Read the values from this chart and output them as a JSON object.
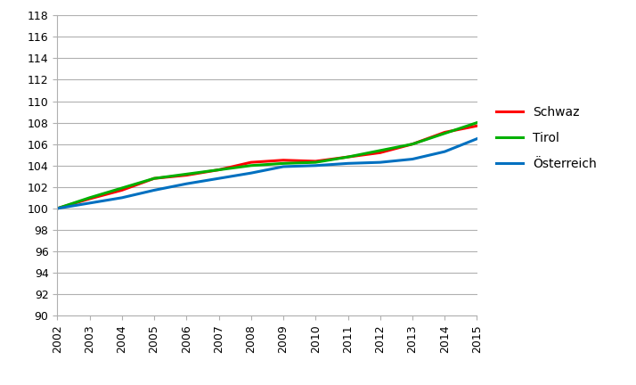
{
  "years": [
    2002,
    2003,
    2004,
    2005,
    2006,
    2007,
    2008,
    2009,
    2010,
    2011,
    2012,
    2013,
    2014,
    2015
  ],
  "schwaz": [
    100.0,
    100.9,
    101.7,
    102.8,
    103.1,
    103.6,
    104.3,
    104.5,
    104.4,
    104.8,
    105.2,
    106.0,
    107.1,
    107.7
  ],
  "tirol": [
    100.0,
    101.0,
    101.9,
    102.8,
    103.2,
    103.6,
    104.0,
    104.2,
    104.3,
    104.8,
    105.4,
    106.0,
    107.0,
    108.0
  ],
  "oesterreich": [
    100.0,
    100.5,
    101.0,
    101.7,
    102.3,
    102.8,
    103.3,
    103.9,
    104.0,
    104.2,
    104.3,
    104.6,
    105.3,
    106.5
  ],
  "schwaz_color": "#ff0000",
  "tirol_color": "#00b000",
  "oesterreich_color": "#0070c0",
  "ylim": [
    90,
    118
  ],
  "yticks": [
    90,
    92,
    94,
    96,
    98,
    100,
    102,
    104,
    106,
    108,
    110,
    112,
    114,
    116,
    118
  ],
  "legend_labels": [
    "Schwaz",
    "Tirol",
    "Österreich"
  ],
  "line_width": 2.2,
  "background_color": "#ffffff",
  "grid_color": "#b0b0b0",
  "tick_fontsize": 9,
  "legend_fontsize": 10
}
